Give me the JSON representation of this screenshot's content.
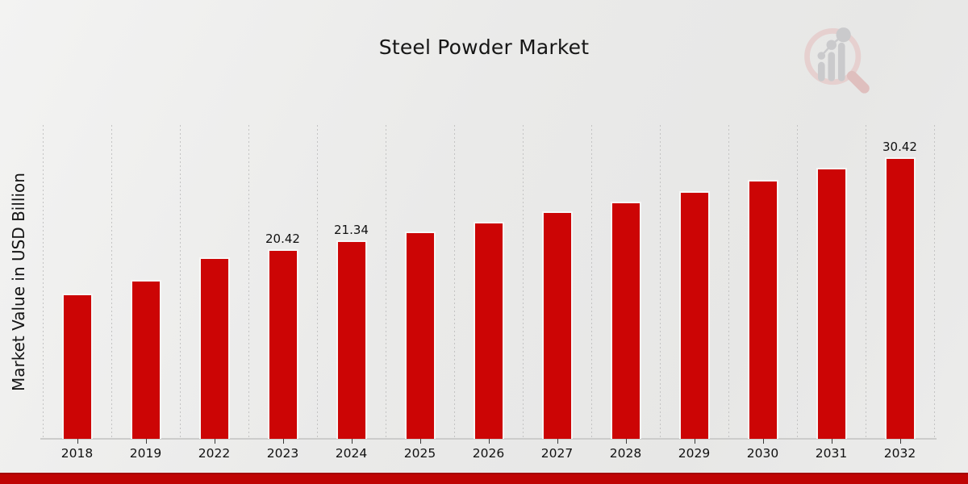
{
  "header": {
    "title": "Steel Powder Market"
  },
  "y_axis": {
    "label": "Market Value in USD Billion"
  },
  "chart_data": {
    "type": "bar",
    "title": "Steel Powder Market",
    "xlabel": "",
    "ylabel": "Market Value in USD Billion",
    "categories": [
      "2018",
      "2019",
      "2022",
      "2023",
      "2024",
      "2025",
      "2026",
      "2027",
      "2028",
      "2029",
      "2030",
      "2031",
      "2032"
    ],
    "values": [
      15.6,
      17.1,
      19.54,
      20.42,
      21.34,
      22.35,
      23.4,
      24.5,
      25.6,
      26.75,
      27.96,
      29.28,
      30.42
    ],
    "bar_labels": [
      "",
      "",
      "",
      "20.42",
      "21.34",
      "",
      "",
      "",
      "",
      "",
      "",
      "",
      "30.42"
    ],
    "ylim": [
      0,
      34
    ],
    "grid": "vertical-dashed",
    "legend": "none",
    "bar_color": "#cc0505",
    "bar_edge_color": "#f7f7f6",
    "axis_color": "#cccccb",
    "label_color": "#111111"
  },
  "footer": {
    "stripe_color": "#bf0404"
  }
}
